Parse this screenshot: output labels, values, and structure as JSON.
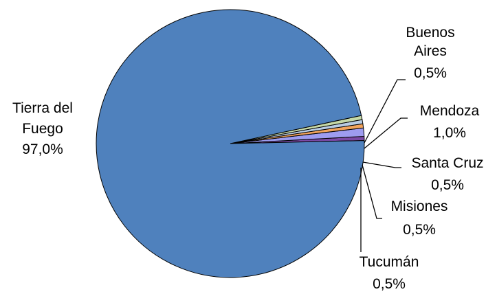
{
  "chart_data": {
    "type": "pie",
    "title": "",
    "decimal_separator": ",",
    "slices": [
      {
        "label_lines": [
          "Buenos",
          "Aires"
        ],
        "value": 0.5,
        "value_text": "0,5%",
        "color": "#7b4aa6"
      },
      {
        "label_lines": [
          "Mendoza"
        ],
        "value": 1.0,
        "value_text": "1,0%",
        "color": "#9e9cf0"
      },
      {
        "label_lines": [
          "Santa Cruz"
        ],
        "value": 0.5,
        "value_text": "0,5%",
        "color": "#f2a45c"
      },
      {
        "label_lines": [
          "Misiones"
        ],
        "value": 0.5,
        "value_text": "0,5%",
        "color": "#b8cce4"
      },
      {
        "label_lines": [
          "Tucumán"
        ],
        "value": 0.5,
        "value_text": "0,5%",
        "color": "#c6d9a8"
      },
      {
        "label_lines": [
          "Tierra del",
          "Fuego"
        ],
        "value": 97.0,
        "value_text": "97,0%",
        "color": "#4f81bd"
      }
    ]
  }
}
